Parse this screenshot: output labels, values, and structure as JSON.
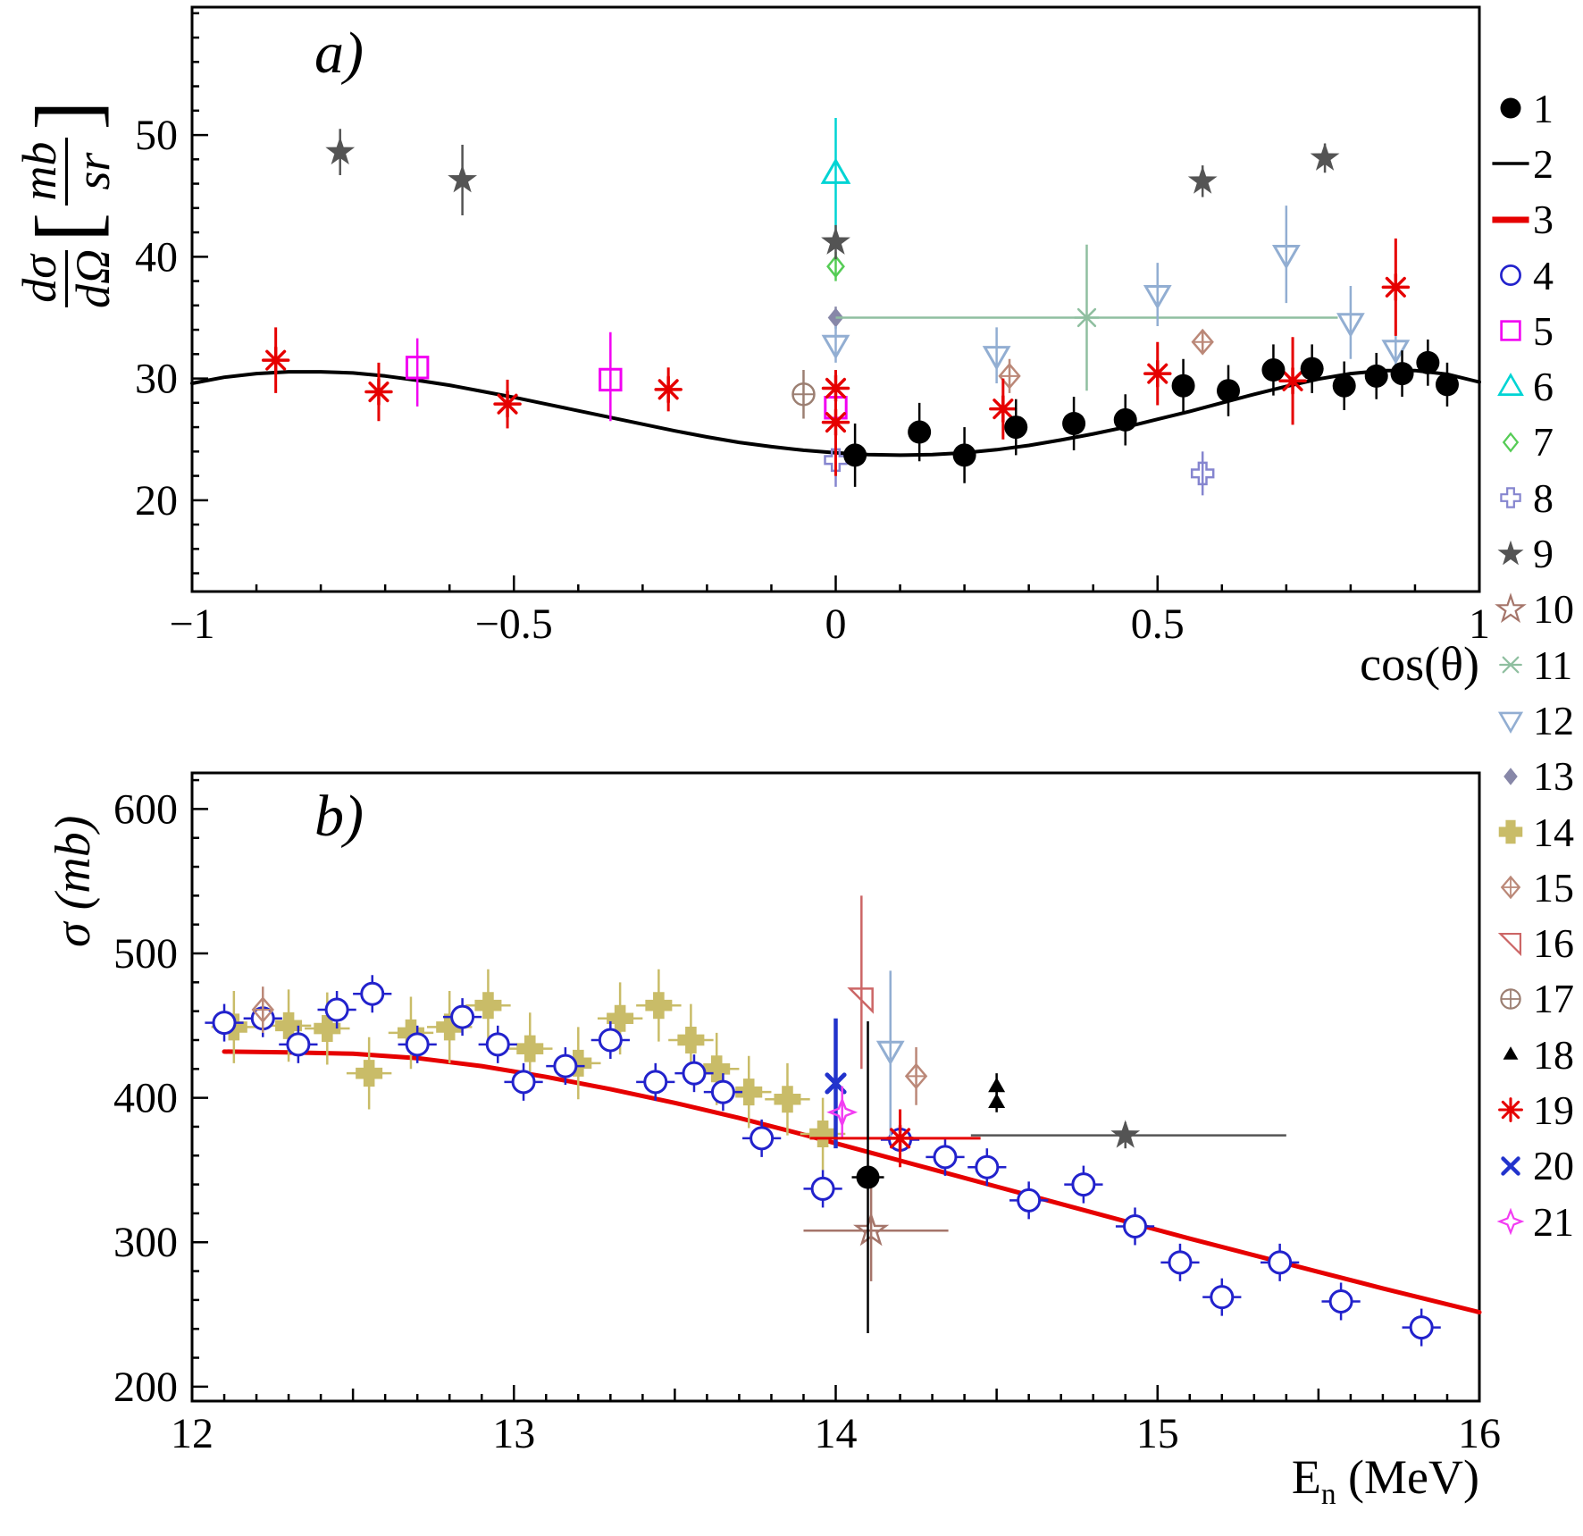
{
  "legend": {
    "position": "right",
    "items": [
      {
        "label": "1",
        "marker": "circle-filled",
        "color": "#000000",
        "size": 13
      },
      {
        "label": "2",
        "marker": "hline",
        "color": "#000000",
        "size": 15,
        "stroke": 4
      },
      {
        "label": "3",
        "marker": "hline",
        "color": "#e60000",
        "size": 15,
        "stroke": 8
      },
      {
        "label": "4",
        "marker": "circle-open",
        "color": "#2222cc",
        "size": 12,
        "stroke": 3
      },
      {
        "label": "5",
        "marker": "square-open",
        "color": "#f200f2",
        "size": 13,
        "stroke": 3
      },
      {
        "label": "6",
        "marker": "triangle-up-open",
        "color": "#00d4d4",
        "size": 15,
        "stroke": 3
      },
      {
        "label": "7",
        "marker": "diamond-open",
        "color": "#55cc55",
        "size": 11,
        "stroke": 2.5
      },
      {
        "label": "8",
        "marker": "cross-open",
        "color": "#8585cf",
        "size": 12,
        "stroke": 2.5
      },
      {
        "label": "9",
        "marker": "star-filled",
        "color": "#545454",
        "size": 15
      },
      {
        "label": "10",
        "marker": "star-open",
        "color": "#a5756a",
        "size": 15,
        "stroke": 2.5
      },
      {
        "label": "11",
        "marker": "asterisk",
        "color": "#8fbfa0",
        "size": 14,
        "stroke": 2.5
      },
      {
        "label": "12",
        "marker": "triangle-down-open",
        "color": "#92aed2",
        "size": 14,
        "stroke": 3
      },
      {
        "label": "13",
        "marker": "diamond-filled",
        "color": "#8787a8",
        "size": 11
      },
      {
        "label": "14",
        "marker": "plus-filled",
        "color": "#c9bc68",
        "size": 15
      },
      {
        "label": "15",
        "marker": "diamond-cross-open",
        "color": "#bb8878",
        "size": 13,
        "stroke": 2.5
      },
      {
        "label": "16",
        "marker": "pennant-open",
        "color": "#cc6666",
        "size": 13,
        "stroke": 2.5
      },
      {
        "label": "17",
        "marker": "circle-plus-open",
        "color": "#9c7f72",
        "size": 12,
        "stroke": 2.5
      },
      {
        "label": "18",
        "marker": "triangle-up-filled",
        "color": "#000000",
        "size": 10
      },
      {
        "label": "19",
        "marker": "burst",
        "color": "#e60000",
        "size": 14,
        "stroke": 3.5
      },
      {
        "label": "20",
        "marker": "x-bold",
        "color": "#2233cc",
        "size": 12,
        "stroke": 5
      },
      {
        "label": "21",
        "marker": "star4-open",
        "color": "#f23cf2",
        "size": 14,
        "stroke": 2.5
      }
    ]
  },
  "chart_data": [
    {
      "id": "a",
      "type": "scatter",
      "title": "a)",
      "xlabel": "cos(θ)",
      "ylabel": "dσ/dΩ [mb/sr]",
      "ylabel_parts": {
        "num1": "dσ",
        "den1": "dΩ",
        "num2": "mb",
        "den2": "sr"
      },
      "xlim": [
        -1,
        1
      ],
      "ylim": [
        12.5,
        60.5
      ],
      "xticks": [
        -1,
        -0.5,
        0,
        0.5,
        1
      ],
      "xtick_labels": [
        "−1",
        "−0.5",
        "0",
        "0.5",
        "1"
      ],
      "yticks": [
        20,
        30,
        40,
        50
      ],
      "ytick_labels": [
        "20",
        "30",
        "40",
        "50"
      ],
      "x_minor": 0.1,
      "y_minor": 2,
      "grid": false,
      "curve": {
        "legend_ref": 2,
        "color": "#000000",
        "width": 4,
        "points": [
          [
            -1,
            29.6
          ],
          [
            -0.95,
            30.1
          ],
          [
            -0.9,
            30.4
          ],
          [
            -0.85,
            30.55
          ],
          [
            -0.8,
            30.55
          ],
          [
            -0.75,
            30.45
          ],
          [
            -0.7,
            30.2
          ],
          [
            -0.65,
            29.85
          ],
          [
            -0.6,
            29.45
          ],
          [
            -0.55,
            28.95
          ],
          [
            -0.5,
            28.45
          ],
          [
            -0.45,
            27.9
          ],
          [
            -0.4,
            27.35
          ],
          [
            -0.35,
            26.8
          ],
          [
            -0.3,
            26.25
          ],
          [
            -0.25,
            25.7
          ],
          [
            -0.2,
            25.2
          ],
          [
            -0.15,
            24.75
          ],
          [
            -0.1,
            24.4
          ],
          [
            -0.05,
            24.1
          ],
          [
            0,
            23.9
          ],
          [
            0.05,
            23.75
          ],
          [
            0.1,
            23.7
          ],
          [
            0.15,
            23.75
          ],
          [
            0.2,
            23.9
          ],
          [
            0.25,
            24.15
          ],
          [
            0.3,
            24.5
          ],
          [
            0.35,
            24.95
          ],
          [
            0.4,
            25.45
          ],
          [
            0.45,
            26.0
          ],
          [
            0.5,
            26.65
          ],
          [
            0.55,
            27.3
          ],
          [
            0.6,
            28.0
          ],
          [
            0.65,
            28.7
          ],
          [
            0.7,
            29.35
          ],
          [
            0.75,
            29.95
          ],
          [
            0.8,
            30.4
          ],
          [
            0.85,
            30.65
          ],
          [
            0.9,
            30.65
          ],
          [
            0.95,
            30.35
          ],
          [
            1,
            29.7
          ]
        ]
      },
      "series": [
        {
          "ref": 6,
          "points": [
            {
              "x": 0.0,
              "y": 46.8,
              "ey": 4.6
            }
          ]
        },
        {
          "ref": 7,
          "points": [
            {
              "x": 0.0,
              "y": 39.2,
              "ey": 1.2
            }
          ]
        },
        {
          "ref": 13,
          "points": [
            {
              "x": 0.0,
              "y": 35.0,
              "ey": 0.9
            }
          ]
        },
        {
          "ref": 11,
          "points": [
            {
              "x": 0.39,
              "y": 35.0,
              "ey": 6.0,
              "exl": 0.39,
              "exh": 0.39
            }
          ]
        },
        {
          "ref": 5,
          "points": [
            {
              "x": -0.65,
              "y": 30.9,
              "eyl": 3.2,
              "eyh": 2.4
            },
            {
              "x": -0.35,
              "y": 29.9,
              "eyl": 3.4,
              "eyh": 3.9
            },
            {
              "x": 0.0,
              "y": 27.6,
              "ey": 1.2
            }
          ]
        },
        {
          "ref": 12,
          "points": [
            {
              "x": 0.0,
              "y": 32.8,
              "ey": 1.5
            },
            {
              "x": 0.25,
              "y": 31.9,
              "ey": 2.3
            },
            {
              "x": 0.5,
              "y": 36.9,
              "ey": 2.6
            },
            {
              "x": 0.7,
              "y": 40.2,
              "ey": 4.0
            },
            {
              "x": 0.8,
              "y": 34.6,
              "ey": 3.0
            },
            {
              "x": 0.87,
              "y": 32.4,
              "ey": 2.0
            }
          ]
        },
        {
          "ref": 8,
          "points": [
            {
              "x": 0.0,
              "y": 23.3,
              "ey": 2.2
            },
            {
              "x": 0.57,
              "y": 22.2,
              "ey": 1.8
            }
          ]
        },
        {
          "ref": 9,
          "points": [
            {
              "x": -0.77,
              "y": 48.6,
              "ey": 1.9
            },
            {
              "x": -0.58,
              "y": 46.3,
              "ey": 2.9
            },
            {
              "x": 0.0,
              "y": 41.2,
              "ey": 1.4
            },
            {
              "x": 0.57,
              "y": 46.2,
              "ey": 1.3
            },
            {
              "x": 0.76,
              "y": 48.1,
              "ey": 1.2
            }
          ]
        },
        {
          "ref": 17,
          "points": [
            {
              "x": -0.05,
              "y": 28.7,
              "ey": 2.0
            }
          ]
        },
        {
          "ref": 15,
          "points": [
            {
              "x": 0.27,
              "y": 30.2,
              "ey": 1.4
            },
            {
              "x": 0.57,
              "y": 33.0,
              "ey": 1.0
            }
          ]
        },
        {
          "ref": 19,
          "points": [
            {
              "x": -0.87,
              "y": 31.5,
              "ey": 2.7
            },
            {
              "x": -0.71,
              "y": 28.9,
              "ey": 2.4
            },
            {
              "x": -0.51,
              "y": 27.9,
              "ey": 2.0
            },
            {
              "x": -0.26,
              "y": 29.1,
              "ey": 1.8
            },
            {
              "x": 0.0,
              "y": 29.2,
              "ey": 1.5
            },
            {
              "x": 0.0,
              "y": 26.4,
              "eyl": 4.4,
              "eyh": 1.6
            },
            {
              "x": 0.26,
              "y": 27.5,
              "ey": 2.5
            },
            {
              "x": 0.5,
              "y": 30.4,
              "ey": 2.6
            },
            {
              "x": 0.71,
              "y": 29.8,
              "ey": 3.6
            },
            {
              "x": 0.87,
              "y": 37.5,
              "ey": 4.0
            }
          ]
        },
        {
          "ref": 1,
          "points": [
            {
              "x": 0.03,
              "y": 23.7,
              "ey": 2.6
            },
            {
              "x": 0.13,
              "y": 25.6,
              "ey": 2.4
            },
            {
              "x": 0.2,
              "y": 23.7,
              "ey": 2.3
            },
            {
              "x": 0.28,
              "y": 26.0,
              "ey": 2.3
            },
            {
              "x": 0.37,
              "y": 26.3,
              "ey": 2.2
            },
            {
              "x": 0.45,
              "y": 26.6,
              "ey": 2.1
            },
            {
              "x": 0.54,
              "y": 29.4,
              "ey": 2.2
            },
            {
              "x": 0.61,
              "y": 29.0,
              "ey": 2.1
            },
            {
              "x": 0.68,
              "y": 30.7,
              "ey": 2.1
            },
            {
              "x": 0.74,
              "y": 30.8,
              "ey": 2.0
            },
            {
              "x": 0.79,
              "y": 29.4,
              "ey": 2.0
            },
            {
              "x": 0.84,
              "y": 30.2,
              "ey": 1.9
            },
            {
              "x": 0.88,
              "y": 30.4,
              "ey": 1.9
            },
            {
              "x": 0.92,
              "y": 31.3,
              "ey": 1.9
            },
            {
              "x": 0.95,
              "y": 29.5,
              "ey": 1.8
            }
          ]
        }
      ]
    },
    {
      "id": "b",
      "type": "scatter",
      "title": "b)",
      "xlabel": "En (MeV)",
      "xlabel_parts": {
        "main": "E",
        "sub": "n",
        "rest": " (MeV)"
      },
      "ylabel": "σ (mb)",
      "xlim": [
        12,
        16
      ],
      "ylim": [
        190,
        625
      ],
      "xticks": [
        12,
        13,
        14,
        15,
        16
      ],
      "xtick_labels": [
        "12",
        "13",
        "14",
        "15",
        "16"
      ],
      "yticks": [
        200,
        300,
        400,
        500,
        600
      ],
      "ytick_labels": [
        "200",
        "300",
        "400",
        "500",
        "600"
      ],
      "x_minor": 0.1,
      "x_medium": 0.5,
      "y_minor": 20,
      "grid": false,
      "curve": {
        "legend_ref": 3,
        "color": "#e60000",
        "width": 5,
        "points": [
          [
            12.1,
            432
          ],
          [
            12.3,
            431.5
          ],
          [
            12.5,
            430.5
          ],
          [
            12.7,
            427.5
          ],
          [
            12.9,
            422
          ],
          [
            13.1,
            414.5
          ],
          [
            13.3,
            406
          ],
          [
            13.5,
            396.5
          ],
          [
            13.7,
            386
          ],
          [
            13.9,
            374.5
          ],
          [
            14.1,
            362.5
          ],
          [
            14.3,
            350.5
          ],
          [
            14.5,
            338.5
          ],
          [
            14.7,
            326.5
          ],
          [
            14.9,
            314.5
          ],
          [
            15.1,
            302.5
          ],
          [
            15.3,
            291
          ],
          [
            15.5,
            279.5
          ],
          [
            15.7,
            268
          ],
          [
            15.9,
            257
          ],
          [
            16,
            251.5
          ]
        ]
      },
      "series": [
        {
          "ref": 14,
          "ex": 0.07,
          "ey": 25,
          "points": [
            [
              12.13,
              449
            ],
            [
              12.3,
              450
            ],
            [
              12.42,
              448
            ],
            [
              12.55,
              417
            ],
            [
              12.68,
              445
            ],
            [
              12.8,
              449
            ],
            [
              12.92,
              464
            ],
            [
              13.05,
              434
            ],
            [
              13.2,
              424
            ],
            [
              13.33,
              455
            ],
            [
              13.45,
              464
            ],
            [
              13.55,
              440
            ],
            [
              13.63,
              420
            ],
            [
              13.73,
              404
            ],
            [
              13.85,
              399
            ],
            [
              13.96,
              375
            ]
          ]
        },
        {
          "ref": 4,
          "ex": 0.06,
          "ey": 13,
          "points": [
            [
              12.1,
              452
            ],
            [
              12.22,
              455
            ],
            [
              12.33,
              437
            ],
            [
              12.45,
              461
            ],
            [
              12.56,
              472
            ],
            [
              12.7,
              437
            ],
            [
              12.84,
              456
            ],
            [
              12.95,
              437
            ],
            [
              13.03,
              411
            ],
            [
              13.16,
              422
            ],
            [
              13.3,
              440
            ],
            [
              13.44,
              411
            ],
            [
              13.56,
              417
            ],
            [
              13.65,
              404
            ],
            [
              13.77,
              372
            ],
            [
              13.96,
              337
            ],
            [
              14.2,
              371
            ],
            [
              14.34,
              359
            ],
            [
              14.47,
              352
            ],
            [
              14.6,
              329
            ],
            [
              14.77,
              340
            ],
            [
              14.93,
              311
            ],
            [
              15.07,
              286
            ],
            [
              15.2,
              262
            ],
            [
              15.38,
              286
            ],
            [
              15.57,
              259
            ],
            [
              15.82,
              241
            ]
          ]
        },
        {
          "ref": 15,
          "points": [
            {
              "x": 12.22,
              "y": 461,
              "ey": 16
            },
            {
              "x": 14.25,
              "y": 415,
              "ey": 20
            }
          ]
        },
        {
          "ref": 16,
          "points": [
            {
              "x": 14.08,
              "y": 468,
              "eyl": 48,
              "eyh": 72
            }
          ]
        },
        {
          "ref": 12,
          "points": [
            {
              "x": 14.17,
              "y": 433,
              "eyl": 62,
              "eyh": 55
            }
          ]
        },
        {
          "ref": 20,
          "points": [
            {
              "x": 14.0,
              "y": 410,
              "ey": 45
            }
          ]
        },
        {
          "ref": 21,
          "points": [
            {
              "x": 14.02,
              "y": 390,
              "ey": 18
            }
          ]
        },
        {
          "ref": 10,
          "points": [
            {
              "x": 14.11,
              "y": 308,
              "ey": 35,
              "exl": 0.21,
              "exh": 0.24
            }
          ]
        },
        {
          "ref": 9,
          "points": [
            {
              "x": 14.9,
              "y": 374,
              "ey": 9,
              "exl": 0.48,
              "exh": 0.5
            }
          ]
        },
        {
          "ref": 19,
          "points": [
            {
              "x": 14.2,
              "y": 372,
              "ey": 20,
              "exl": 0.28,
              "exh": 0.25
            }
          ]
        },
        {
          "ref": 18,
          "points": [
            {
              "x": 14.5,
              "y": 408,
              "ey": 9
            },
            {
              "x": 14.5,
              "y": 397,
              "ey": 7
            }
          ]
        },
        {
          "ref": 1,
          "points": [
            {
              "x": 14.1,
              "y": 345,
              "ey": 108,
              "ex": 0.05
            }
          ]
        }
      ]
    }
  ]
}
